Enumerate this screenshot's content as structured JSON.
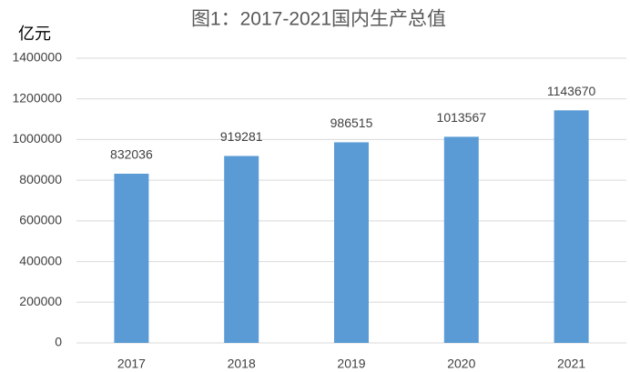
{
  "chart_data": {
    "type": "bar",
    "title": "图1：2017-2021国内生产总值",
    "y_label": "亿元",
    "categories": [
      "2017",
      "2018",
      "2019",
      "2020",
      "2021"
    ],
    "values": [
      832036,
      919281,
      986515,
      1013567,
      1143670
    ],
    "color": "#5b9bd5",
    "ylim": [
      0,
      1400000
    ],
    "yticks": [
      0,
      200000,
      400000,
      600000,
      800000,
      1000000,
      1200000,
      1400000
    ],
    "grid": true
  }
}
